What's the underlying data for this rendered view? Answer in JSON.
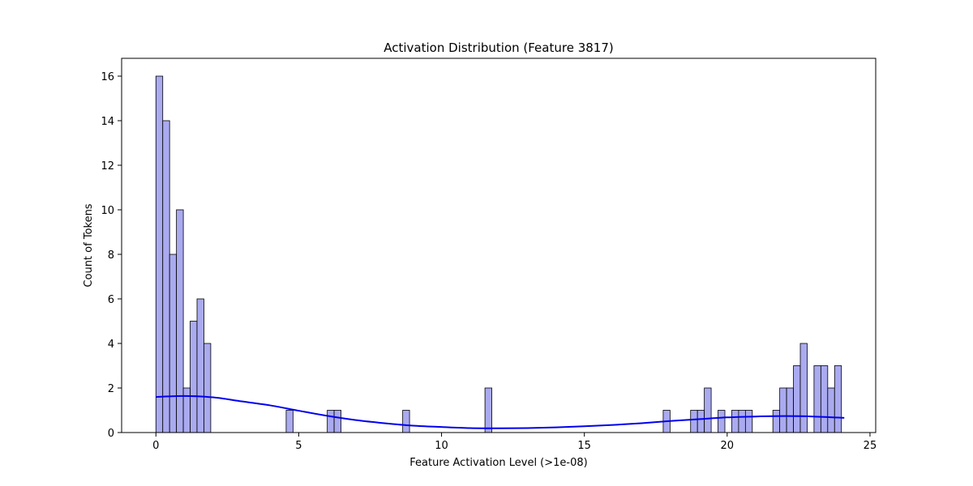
{
  "chart_data": {
    "type": "bar",
    "subtype": "histogram-with-kde",
    "title": "Activation Distribution (Feature 3817)",
    "xlabel": "Feature Activation Level (>1e-08)",
    "ylabel": "Count of Tokens",
    "xlim": [
      -1.2,
      25.2
    ],
    "ylim": [
      0,
      16.8
    ],
    "xticks": [
      0,
      5,
      10,
      15,
      20,
      25
    ],
    "yticks": [
      0,
      2,
      4,
      6,
      8,
      10,
      12,
      14,
      16
    ],
    "grid": false,
    "bin_width": 0.24,
    "bar_color": "#aaaaf0",
    "bar_edge_color": "#000000",
    "kde_color": "#0000ee",
    "bins": [
      {
        "start": 0.0,
        "count": 16
      },
      {
        "start": 0.24,
        "count": 14
      },
      {
        "start": 0.48,
        "count": 8
      },
      {
        "start": 0.72,
        "count": 10
      },
      {
        "start": 0.96,
        "count": 2
      },
      {
        "start": 1.2,
        "count": 5
      },
      {
        "start": 1.44,
        "count": 6
      },
      {
        "start": 1.68,
        "count": 4
      },
      {
        "start": 4.56,
        "count": 1
      },
      {
        "start": 6.0,
        "count": 1
      },
      {
        "start": 6.24,
        "count": 1
      },
      {
        "start": 8.64,
        "count": 1
      },
      {
        "start": 11.52,
        "count": 2
      },
      {
        "start": 17.76,
        "count": 1
      },
      {
        "start": 18.72,
        "count": 1
      },
      {
        "start": 18.96,
        "count": 1
      },
      {
        "start": 19.2,
        "count": 2
      },
      {
        "start": 19.68,
        "count": 1
      },
      {
        "start": 20.16,
        "count": 1
      },
      {
        "start": 20.4,
        "count": 1
      },
      {
        "start": 20.64,
        "count": 1
      },
      {
        "start": 21.6,
        "count": 1
      },
      {
        "start": 21.84,
        "count": 2
      },
      {
        "start": 22.08,
        "count": 2
      },
      {
        "start": 22.32,
        "count": 3
      },
      {
        "start": 22.56,
        "count": 4
      },
      {
        "start": 23.04,
        "count": 3
      },
      {
        "start": 23.28,
        "count": 3
      },
      {
        "start": 23.52,
        "count": 2
      },
      {
        "start": 23.76,
        "count": 3
      }
    ],
    "kde": {
      "x": [
        0,
        1,
        2,
        3,
        4,
        5,
        6,
        7,
        8,
        9,
        10,
        11,
        12,
        13,
        14,
        15,
        16,
        17,
        18,
        19,
        20,
        21,
        22,
        23,
        24.1
      ],
      "y": [
        1.6,
        1.64,
        1.58,
        1.4,
        1.22,
        0.98,
        0.75,
        0.56,
        0.42,
        0.31,
        0.25,
        0.2,
        0.19,
        0.2,
        0.23,
        0.28,
        0.34,
        0.42,
        0.52,
        0.6,
        0.68,
        0.72,
        0.74,
        0.72,
        0.66
      ]
    }
  }
}
